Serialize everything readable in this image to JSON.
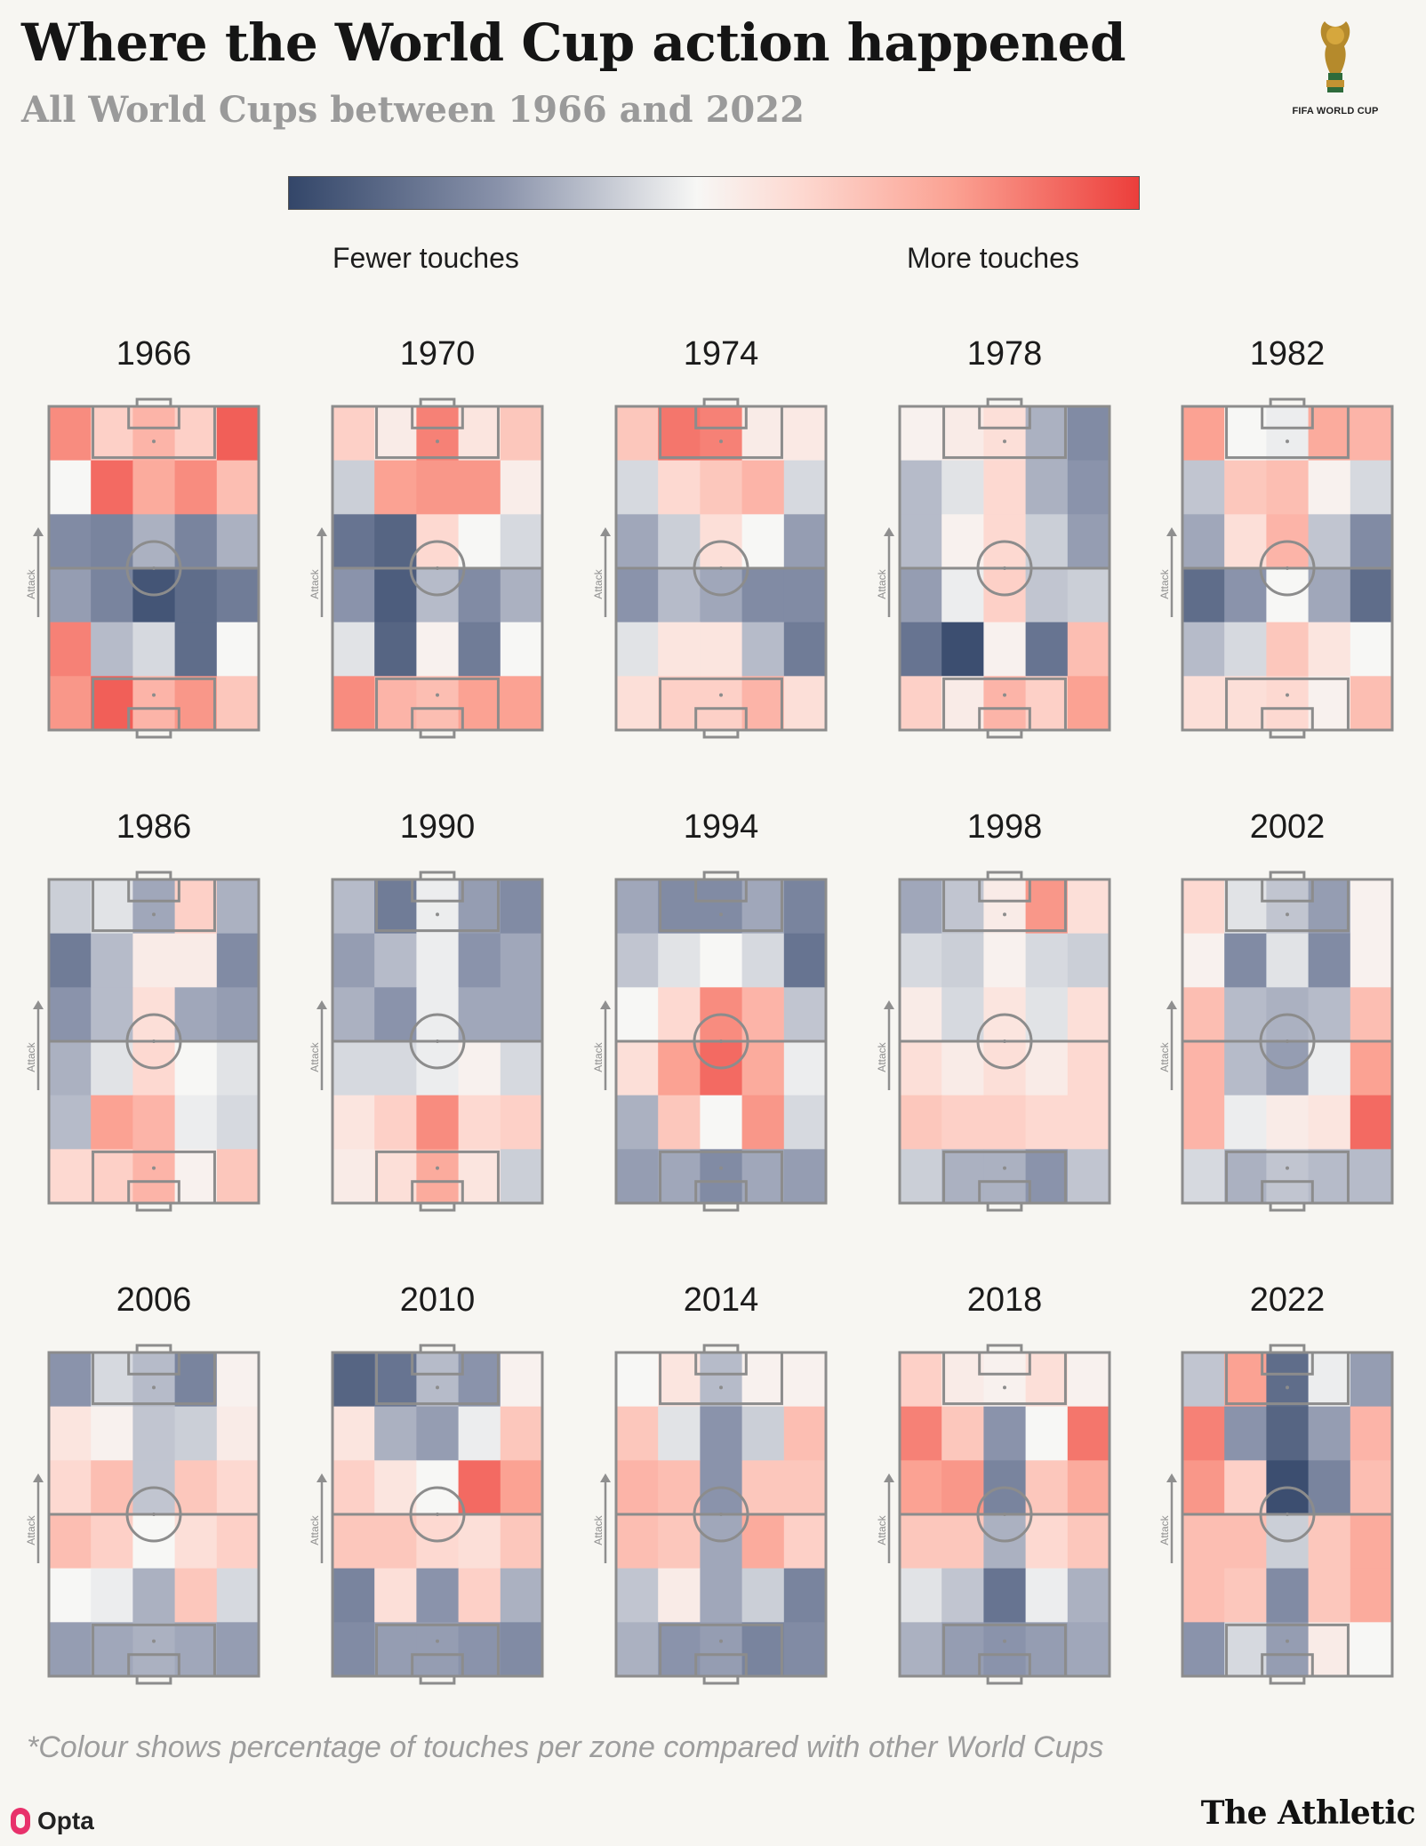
{
  "header": {
    "title": "Where the World Cup action happened",
    "subtitle": "All World Cups between 1966 and 2022",
    "logo_text": "FIFA WORLD CUP"
  },
  "legend": {
    "low_label": "Fewer touches",
    "high_label": "More touches",
    "colors": [
      "#334669",
      "#8a93ab",
      "#f7f7f5",
      "#fdd9d1",
      "#fba293",
      "#ec3e3b"
    ]
  },
  "chart_data": {
    "type": "heatmap",
    "title": "Where the World Cup action happened",
    "subtitle": "All World Cups between 1966 and 2022",
    "axis_label": "Attack",
    "scale": {
      "min": -1,
      "max": 1,
      "low_label": "Fewer touches",
      "high_label": "More touches"
    },
    "rows_order": "top row = attacking end, bottom row = own goal end",
    "cols_order": "left to right across pitch width",
    "panels": [
      {
        "year": "1966",
        "grid": [
          [
            0.65,
            0.3,
            0.45,
            0.3,
            0.85
          ],
          [
            0.0,
            0.8,
            0.5,
            0.65,
            0.4
          ],
          [
            -0.55,
            -0.6,
            -0.35,
            -0.6,
            -0.35
          ],
          [
            -0.45,
            -0.6,
            -0.9,
            -0.75,
            -0.65
          ],
          [
            0.7,
            -0.3,
            -0.15,
            -0.75,
            0.0
          ],
          [
            0.6,
            0.85,
            0.45,
            0.6,
            0.35
          ]
        ]
      },
      {
        "year": "1970",
        "grid": [
          [
            0.3,
            0.1,
            0.7,
            0.15,
            0.35
          ],
          [
            -0.2,
            0.55,
            0.6,
            0.6,
            0.08
          ],
          [
            -0.7,
            -0.8,
            0.25,
            0.0,
            -0.15
          ],
          [
            -0.5,
            -0.85,
            -0.3,
            -0.55,
            -0.35
          ],
          [
            -0.1,
            -0.8,
            0.05,
            -0.65,
            0.0
          ],
          [
            0.65,
            0.45,
            0.4,
            0.55,
            0.55
          ]
        ]
      },
      {
        "year": "1974",
        "grid": [
          [
            0.35,
            0.75,
            0.7,
            0.1,
            0.12
          ],
          [
            -0.15,
            0.25,
            0.35,
            0.45,
            -0.15
          ],
          [
            -0.4,
            -0.2,
            0.2,
            0.0,
            -0.45
          ],
          [
            -0.5,
            -0.3,
            -0.4,
            -0.55,
            -0.55
          ],
          [
            -0.1,
            0.15,
            0.15,
            -0.3,
            -0.65
          ],
          [
            0.2,
            0.3,
            0.3,
            0.45,
            0.2
          ]
        ]
      },
      {
        "year": "1978",
        "grid": [
          [
            0.05,
            0.1,
            0.2,
            -0.35,
            -0.55
          ],
          [
            -0.3,
            -0.1,
            0.25,
            -0.35,
            -0.5
          ],
          [
            -0.3,
            0.05,
            0.25,
            -0.2,
            -0.45
          ],
          [
            -0.45,
            -0.05,
            0.3,
            -0.25,
            -0.2
          ],
          [
            -0.7,
            -0.95,
            0.05,
            -0.7,
            0.4
          ],
          [
            0.3,
            0.1,
            0.45,
            0.3,
            0.55
          ]
        ]
      },
      {
        "year": "1982",
        "grid": [
          [
            0.55,
            0.0,
            -0.05,
            0.5,
            0.45
          ],
          [
            -0.25,
            0.35,
            0.4,
            0.05,
            -0.15
          ],
          [
            -0.4,
            0.2,
            0.45,
            -0.25,
            -0.55
          ],
          [
            -0.75,
            -0.5,
            0.0,
            -0.4,
            -0.75
          ],
          [
            -0.3,
            -0.15,
            0.35,
            0.15,
            0.0
          ],
          [
            0.2,
            0.2,
            0.25,
            0.05,
            0.4
          ]
        ]
      },
      {
        "year": "1986",
        "grid": [
          [
            -0.2,
            -0.1,
            -0.4,
            0.3,
            -0.35
          ],
          [
            -0.65,
            -0.3,
            0.1,
            0.1,
            -0.55
          ],
          [
            -0.5,
            -0.3,
            0.2,
            -0.4,
            -0.45
          ],
          [
            -0.35,
            -0.1,
            0.25,
            0.0,
            -0.1
          ],
          [
            -0.3,
            0.55,
            0.45,
            -0.05,
            -0.15
          ],
          [
            0.25,
            0.3,
            0.45,
            0.05,
            0.35
          ]
        ]
      },
      {
        "year": "1990",
        "grid": [
          [
            -0.3,
            -0.65,
            -0.05,
            -0.45,
            -0.55
          ],
          [
            -0.45,
            -0.3,
            -0.05,
            -0.5,
            -0.4
          ],
          [
            -0.35,
            -0.5,
            -0.05,
            -0.4,
            -0.4
          ],
          [
            -0.15,
            -0.15,
            -0.05,
            0.05,
            -0.15
          ],
          [
            0.15,
            0.3,
            0.65,
            0.25,
            0.3
          ],
          [
            0.1,
            0.2,
            0.5,
            0.15,
            -0.2
          ]
        ]
      },
      {
        "year": "1994",
        "grid": [
          [
            -0.4,
            -0.55,
            -0.55,
            -0.4,
            -0.6
          ],
          [
            -0.25,
            -0.1,
            0.0,
            -0.15,
            -0.7
          ],
          [
            0.0,
            0.25,
            0.65,
            0.45,
            -0.25
          ],
          [
            0.2,
            0.55,
            0.8,
            0.5,
            -0.05
          ],
          [
            -0.35,
            0.35,
            0.0,
            0.6,
            -0.15
          ],
          [
            -0.45,
            -0.4,
            -0.55,
            -0.4,
            -0.45
          ]
        ]
      },
      {
        "year": "1998",
        "grid": [
          [
            -0.4,
            -0.25,
            0.1,
            0.6,
            0.2
          ],
          [
            -0.15,
            -0.2,
            0.05,
            -0.15,
            -0.2
          ],
          [
            0.1,
            -0.15,
            0.15,
            -0.1,
            0.2
          ],
          [
            0.2,
            0.1,
            0.2,
            0.1,
            0.25
          ],
          [
            0.35,
            0.3,
            0.3,
            0.25,
            0.25
          ],
          [
            -0.2,
            -0.35,
            -0.35,
            -0.5,
            -0.25
          ]
        ]
      },
      {
        "year": "2002",
        "grid": [
          [
            0.25,
            -0.1,
            -0.25,
            -0.45,
            0.05
          ],
          [
            0.05,
            -0.55,
            -0.1,
            -0.55,
            0.05
          ],
          [
            0.4,
            -0.3,
            -0.35,
            -0.3,
            0.4
          ],
          [
            0.45,
            -0.3,
            -0.45,
            -0.05,
            0.55
          ],
          [
            0.45,
            -0.05,
            0.1,
            0.15,
            0.8
          ],
          [
            -0.15,
            -0.35,
            -0.25,
            -0.3,
            -0.3
          ]
        ]
      },
      {
        "year": "2006",
        "grid": [
          [
            -0.5,
            -0.15,
            -0.3,
            -0.6,
            0.05
          ],
          [
            0.15,
            0.05,
            -0.25,
            -0.2,
            0.1
          ],
          [
            0.25,
            0.4,
            -0.25,
            0.35,
            0.25
          ],
          [
            0.4,
            0.3,
            0.0,
            0.2,
            0.3
          ],
          [
            0.0,
            -0.05,
            -0.35,
            0.35,
            -0.15
          ],
          [
            -0.45,
            -0.4,
            -0.35,
            -0.4,
            -0.45
          ]
        ]
      },
      {
        "year": "2010",
        "grid": [
          [
            -0.8,
            -0.7,
            -0.3,
            -0.5,
            0.05
          ],
          [
            0.15,
            -0.35,
            -0.45,
            -0.05,
            0.35
          ],
          [
            0.3,
            0.15,
            0.0,
            0.8,
            0.55
          ],
          [
            0.35,
            0.35,
            0.25,
            0.2,
            0.35
          ],
          [
            -0.6,
            0.2,
            -0.5,
            0.3,
            -0.35
          ],
          [
            -0.55,
            -0.45,
            -0.45,
            -0.5,
            -0.55
          ]
        ]
      },
      {
        "year": "2014",
        "grid": [
          [
            0.0,
            0.15,
            -0.3,
            0.05,
            0.05
          ],
          [
            0.35,
            -0.1,
            -0.5,
            -0.2,
            0.4
          ],
          [
            0.45,
            0.4,
            -0.5,
            0.35,
            0.35
          ],
          [
            0.4,
            0.35,
            -0.4,
            0.5,
            0.3
          ],
          [
            -0.25,
            0.1,
            -0.4,
            -0.2,
            -0.6
          ],
          [
            -0.35,
            -0.5,
            -0.45,
            -0.6,
            -0.55
          ]
        ]
      },
      {
        "year": "2018",
        "grid": [
          [
            0.3,
            0.1,
            0.05,
            0.2,
            0.05
          ],
          [
            0.7,
            0.35,
            -0.5,
            0.0,
            0.75
          ],
          [
            0.55,
            0.6,
            -0.6,
            0.35,
            0.5
          ],
          [
            0.35,
            0.35,
            -0.35,
            0.25,
            0.35
          ],
          [
            -0.1,
            -0.25,
            -0.7,
            -0.05,
            -0.35
          ],
          [
            -0.35,
            -0.45,
            -0.5,
            -0.45,
            -0.4
          ]
        ]
      },
      {
        "year": "2022",
        "grid": [
          [
            -0.25,
            0.55,
            -0.75,
            -0.05,
            -0.45
          ],
          [
            0.7,
            -0.5,
            -0.8,
            -0.45,
            0.45
          ],
          [
            0.6,
            0.3,
            -0.95,
            -0.6,
            0.4
          ],
          [
            0.4,
            0.4,
            -0.2,
            0.35,
            0.5
          ],
          [
            0.4,
            0.35,
            -0.55,
            0.35,
            0.5
          ],
          [
            -0.5,
            -0.15,
            -0.45,
            0.1,
            0.0
          ]
        ]
      }
    ]
  },
  "footer": {
    "footnote": "*Colour shows percentage of touches per zone compared with other World Cups",
    "opta_label": "Opta",
    "brand": "The Athletic"
  }
}
